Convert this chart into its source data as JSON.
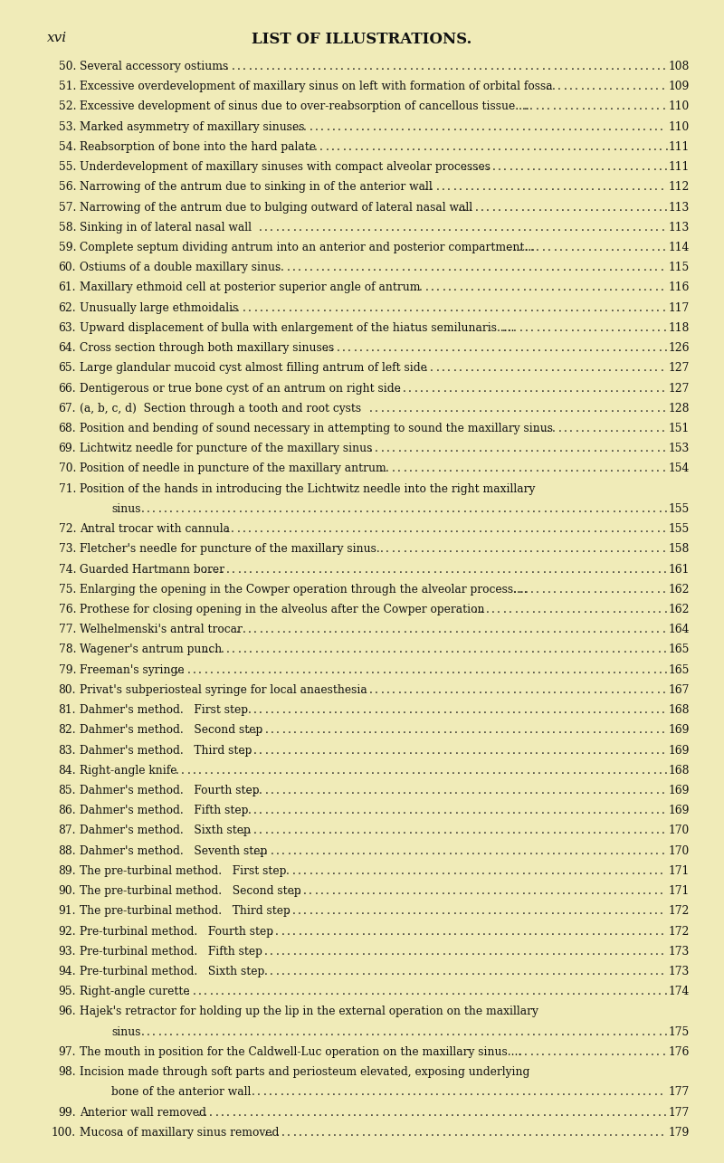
{
  "bg_color": "#f0ebb8",
  "title_left": "xvi",
  "title_center": "LIST OF ILLUSTRATIONS.",
  "entries": [
    {
      "num": "50.",
      "text": "Several accessory ostiums",
      "page": "108",
      "cont": false,
      "indent": 0
    },
    {
      "num": "51.",
      "text": "Excessive overdevelopment of maxillary sinus on left with formation of orbital fossa",
      "page": "109",
      "cont": false,
      "indent": 0
    },
    {
      "num": "52.",
      "text": "Excessive development of sinus due to over-reabsorption of cancellous tissue....",
      "page": "110",
      "cont": false,
      "indent": 0
    },
    {
      "num": "53.",
      "text": "Marked asymmetry of maxillary sinuses",
      "page": "110",
      "cont": false,
      "indent": 0
    },
    {
      "num": "54.",
      "text": "Reabsorption of bone into the hard palate",
      "page": "111",
      "cont": false,
      "indent": 0
    },
    {
      "num": "55.",
      "text": "Underdevelopment of maxillary sinuses with compact alveolar processes",
      "page": "111",
      "cont": false,
      "indent": 0
    },
    {
      "num": "56.",
      "text": "Narrowing of the antrum due to sinking in of the anterior wall",
      "page": "112",
      "cont": false,
      "indent": 0
    },
    {
      "num": "57.",
      "text": "Narrowing of the antrum due to bulging outward of lateral nasal wall",
      "page": "113",
      "cont": false,
      "indent": 0
    },
    {
      "num": "58.",
      "text": "Sinking in of lateral nasal wall",
      "page": "113",
      "cont": false,
      "indent": 0
    },
    {
      "num": "59.",
      "text": "Complete septum dividing antrum into an anterior and posterior compartment...",
      "page": "114",
      "cont": false,
      "indent": 0
    },
    {
      "num": "60.",
      "text": "Ostiums of a double maxillary sinus",
      "page": "115",
      "cont": false,
      "indent": 0
    },
    {
      "num": "61.",
      "text": "Maxillary ethmoid cell at posterior superior angle of antrum",
      "page": "116",
      "cont": false,
      "indent": 0
    },
    {
      "num": "62.",
      "text": "Unusually large ethmoidalis",
      "page": "117",
      "cont": false,
      "indent": 0
    },
    {
      "num": "63.",
      "text": "Upward displacement of bulla with enlargement of the hiatus semilunaris.....",
      "page": "118",
      "cont": false,
      "indent": 0
    },
    {
      "num": "64.",
      "text": "Cross section through both maxillary sinuses",
      "page": "126",
      "cont": false,
      "indent": 0
    },
    {
      "num": "65.",
      "text": "Large glandular mucoid cyst almost filling antrum of left side",
      "page": "127",
      "cont": false,
      "indent": 0
    },
    {
      "num": "66.",
      "text": "Dentigerous or true bone cyst of an antrum on right side",
      "page": "127",
      "cont": false,
      "indent": 0
    },
    {
      "num": "67.",
      "text": "(a, b, c, d)  Section through a tooth and root cysts",
      "page": "128",
      "cont": false,
      "indent": 0
    },
    {
      "num": "68.",
      "text": "Position and bending of sound necessary in attempting to sound the maxillary sinus",
      "page": "151",
      "cont": false,
      "indent": 0
    },
    {
      "num": "69.",
      "text": "Lichtwitz needle for puncture of the maxillary sinus",
      "page": "153",
      "cont": false,
      "indent": 0
    },
    {
      "num": "70.",
      "text": "Position of needle in puncture of the maxillary antrum",
      "page": "154",
      "cont": false,
      "indent": 0
    },
    {
      "num": "71.",
      "text": "Position of the hands in introducing the Lichtwitz needle into the right maxillary",
      "page": "",
      "cont": true,
      "indent": 0
    },
    {
      "num": "",
      "text": "sinus",
      "page": "155",
      "cont": false,
      "indent": 1
    },
    {
      "num": "72.",
      "text": "Antral trocar with cannula",
      "page": "155",
      "cont": false,
      "indent": 0
    },
    {
      "num": "73.",
      "text": "Fletcher's needle for puncture of the maxillary sinus.",
      "page": "158",
      "cont": false,
      "indent": 0
    },
    {
      "num": "74.",
      "text": "Guarded Hartmann borer",
      "page": "161",
      "cont": false,
      "indent": 0
    },
    {
      "num": "75.",
      "text": "Enlarging the opening in the Cowper operation through the alveolar process....",
      "page": "162",
      "cont": false,
      "indent": 0
    },
    {
      "num": "76.",
      "text": "Prothese for closing opening in the alveolus after the Cowper operation",
      "page": "162",
      "cont": false,
      "indent": 0
    },
    {
      "num": "77.",
      "text": "Welhelmenski's antral trocar",
      "page": "164",
      "cont": false,
      "indent": 0
    },
    {
      "num": "78.",
      "text": "Wagener's antrum punch",
      "page": "165",
      "cont": false,
      "indent": 0
    },
    {
      "num": "79.",
      "text": "Freeman's syringe",
      "page": "165",
      "cont": false,
      "indent": 0
    },
    {
      "num": "80.",
      "text": "Privat's subperiosteal syringe for local anaesthesia",
      "page": "167",
      "cont": false,
      "indent": 0
    },
    {
      "num": "81.",
      "text": "Dahmer's method.   First step",
      "page": "168",
      "cont": false,
      "indent": 0
    },
    {
      "num": "82.",
      "text": "Dahmer's method.   Second step",
      "page": "169",
      "cont": false,
      "indent": 0
    },
    {
      "num": "83.",
      "text": "Dahmer's method.   Third step",
      "page": "169",
      "cont": false,
      "indent": 0
    },
    {
      "num": "84.",
      "text": "Right-angle knife",
      "page": "168",
      "cont": false,
      "indent": 0
    },
    {
      "num": "85.",
      "text": "Dahmer's method.   Fourth step",
      "page": "169",
      "cont": false,
      "indent": 0
    },
    {
      "num": "86.",
      "text": "Dahmer's method.   Fifth step",
      "page": "169",
      "cont": false,
      "indent": 0
    },
    {
      "num": "87.",
      "text": "Dahmer's method.   Sixth step",
      "page": "170",
      "cont": false,
      "indent": 0
    },
    {
      "num": "88.",
      "text": "Dahmer's method.   Seventh step",
      "page": "170",
      "cont": false,
      "indent": 0
    },
    {
      "num": "89.",
      "text": "The pre-turbinal method.   First step",
      "page": "171",
      "cont": false,
      "indent": 0
    },
    {
      "num": "90.",
      "text": "The pre-turbinal method.   Second step",
      "page": "171",
      "cont": false,
      "indent": 0
    },
    {
      "num": "91.",
      "text": "The pre-turbinal method.   Third step",
      "page": "172",
      "cont": false,
      "indent": 0
    },
    {
      "num": "92.",
      "text": "Pre-turbinal method.   Fourth step",
      "page": "172",
      "cont": false,
      "indent": 0
    },
    {
      "num": "93.",
      "text": "Pre-turbinal method.   Fifth step",
      "page": "173",
      "cont": false,
      "indent": 0
    },
    {
      "num": "94.",
      "text": "Pre-turbinal method.   Sixth step",
      "page": "173",
      "cont": false,
      "indent": 0
    },
    {
      "num": "95.",
      "text": "Right-angle curette",
      "page": "174",
      "cont": false,
      "indent": 0
    },
    {
      "num": "96.",
      "text": "Hajek's retractor for holding up the lip in the external operation on the maxillary",
      "page": "",
      "cont": true,
      "indent": 0
    },
    {
      "num": "",
      "text": "sinus",
      "page": "175",
      "cont": false,
      "indent": 1
    },
    {
      "num": "97.",
      "text": "The mouth in position for the Caldwell-Luc operation on the maxillary sinus....",
      "page": "176",
      "cont": false,
      "indent": 0
    },
    {
      "num": "98.",
      "text": "Incision made through soft parts and periosteum elevated, exposing underlying",
      "page": "",
      "cont": true,
      "indent": 0
    },
    {
      "num": "",
      "text": "bone of the anterior wall",
      "page": "177",
      "cont": false,
      "indent": 1
    },
    {
      "num": "99.",
      "text": "Anterior wall removed",
      "page": "177",
      "cont": false,
      "indent": 0
    },
    {
      "num": "100.",
      "text": "Mucosa of maxillary sinus removed",
      "page": "179",
      "cont": false,
      "indent": 0
    }
  ],
  "text_color": "#111111",
  "font_size": 8.8,
  "title_fontsize": 12.0,
  "xvi_fontsize": 11.0
}
